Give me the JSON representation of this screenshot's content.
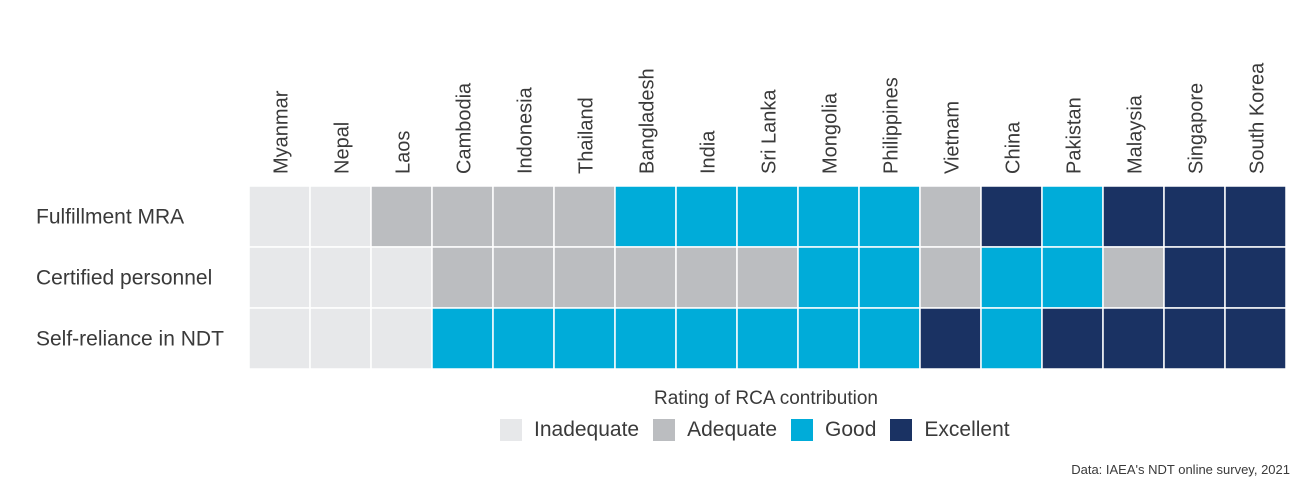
{
  "chart_data": {
    "type": "heatmap",
    "title": "",
    "columns": [
      "Myanmar",
      "Nepal",
      "Laos",
      "Cambodia",
      "Indonesia",
      "Thailand",
      "Bangladesh",
      "India",
      "Sri Lanka",
      "Mongolia",
      "Philippines",
      "Vietnam",
      "China",
      "Pakistan",
      "Malaysia",
      "Singapore",
      "South Korea"
    ],
    "rows": [
      {
        "label": "Fulfillment MRA",
        "values": [
          0,
          0,
          1,
          1,
          1,
          1,
          2,
          2,
          2,
          2,
          2,
          1,
          3,
          2,
          3,
          3,
          3
        ]
      },
      {
        "label": "Certified personnel",
        "values": [
          0,
          0,
          0,
          1,
          1,
          1,
          1,
          1,
          1,
          2,
          2,
          1,
          2,
          2,
          1,
          3,
          3
        ]
      },
      {
        "label": "Self-reliance in NDT",
        "values": [
          0,
          0,
          0,
          2,
          2,
          2,
          2,
          2,
          2,
          2,
          2,
          3,
          2,
          3,
          3,
          3,
          3
        ]
      }
    ],
    "levels": [
      {
        "label": "Inadequate",
        "color": "#e7e8ea"
      },
      {
        "label": "Adequate",
        "color": "#bbbdc0"
      },
      {
        "label": "Good",
        "color": "#00acd9"
      },
      {
        "label": "Excellent",
        "color": "#1a3263"
      }
    ],
    "legend_title": "Rating of RCA contribution",
    "legend_placement": "bottom"
  },
  "source": "Data: IAEA's NDT online survey, 2021"
}
